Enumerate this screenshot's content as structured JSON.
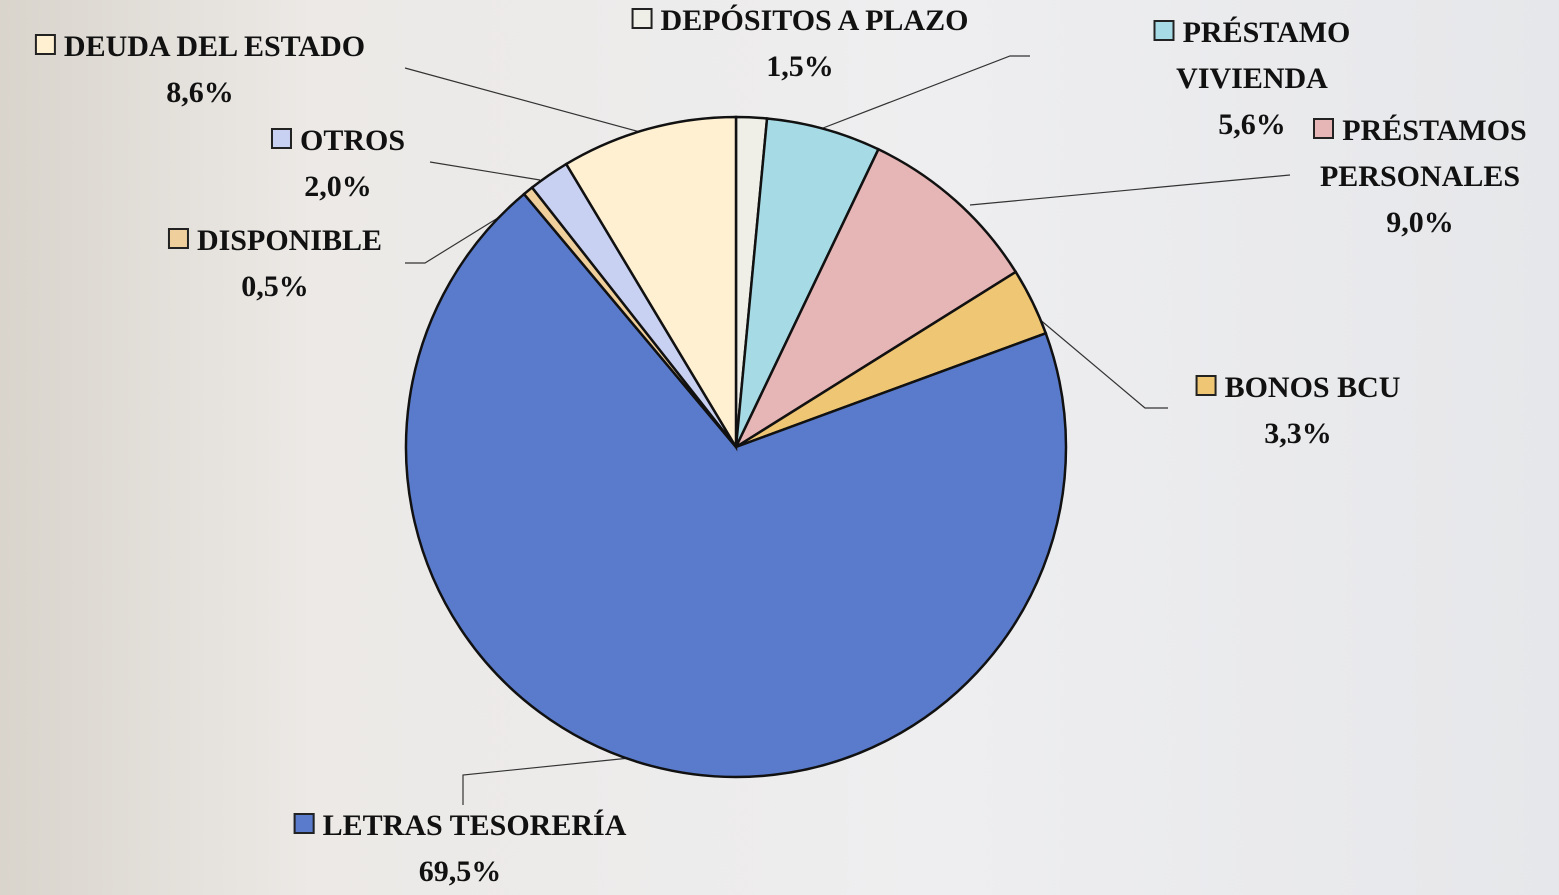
{
  "chart_data": {
    "type": "pie",
    "categories": [
      "DEPÓSITOS A PLAZO",
      "PRÉSTAMO VIVIENDA",
      "PRÉSTAMOS PERSONALES",
      "BONOS BCU",
      "LETRAS TESORERÍA",
      "DISPONIBLE",
      "OTROS",
      "DEUDA DEL ESTADO"
    ],
    "values": [
      1.5,
      5.6,
      9.0,
      3.3,
      69.5,
      0.5,
      2.0,
      8.6
    ],
    "value_labels": [
      "1,5%",
      "5,6%",
      "9,0%",
      "3,3%",
      "69,5%",
      "0,5%",
      "2,0%",
      "8,6%"
    ],
    "colors": [
      "#efefe8",
      "#a6dbe6",
      "#e6b6b6",
      "#efc674",
      "#5a7bcb",
      "#efcf9c",
      "#c9d1f2",
      "#fff0d2"
    ]
  }
}
